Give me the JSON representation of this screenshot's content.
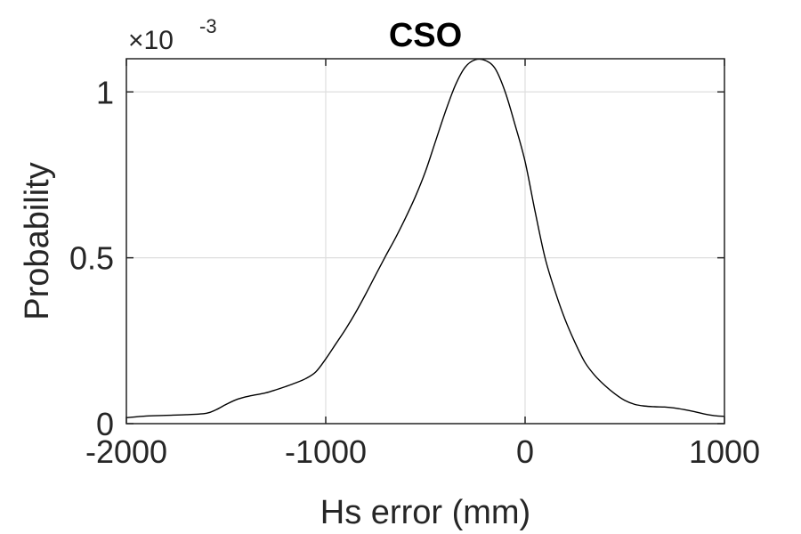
{
  "chart_data": {
    "type": "line",
    "title": "CSO",
    "xlabel": "Hs error (mm)",
    "ylabel": "Probability",
    "xlim": [
      -2000,
      1000
    ],
    "ylim": [
      0,
      0.0011
    ],
    "x_ticks": [
      -2000,
      -1000,
      0,
      1000
    ],
    "x_tick_labels": [
      "-2000",
      "-1000",
      "0",
      "1000"
    ],
    "y_ticks": [
      0,
      0.0005,
      0.001
    ],
    "y_tick_labels": [
      "0",
      "0.5",
      "1"
    ],
    "y_exponent_prefix": "×10",
    "y_exponent_power": "-3",
    "grid": true,
    "series": [
      {
        "color": "#000000",
        "x": [
          -2000,
          -1900,
          -1800,
          -1700,
          -1600,
          -1550,
          -1500,
          -1450,
          -1400,
          -1350,
          -1300,
          -1250,
          -1200,
          -1150,
          -1100,
          -1050,
          -1000,
          -950,
          -900,
          -850,
          -800,
          -750,
          -700,
          -650,
          -600,
          -550,
          -500,
          -450,
          -400,
          -350,
          -300,
          -250,
          -200,
          -150,
          -100,
          -50,
          0,
          50,
          100,
          150,
          200,
          250,
          300,
          350,
          400,
          450,
          500,
          550,
          600,
          650,
          700,
          750,
          800,
          850,
          900,
          950,
          1000
        ],
        "y": [
          1.8e-05,
          2.3e-05,
          2.5e-05,
          2.7e-05,
          3.1e-05,
          4.2e-05,
          5.8e-05,
          7.2e-05,
          8.1e-05,
          8.7e-05,
          9.3e-05,
          0.000102,
          0.000112,
          0.000123,
          0.000136,
          0.000156,
          0.000195,
          0.00024,
          0.000285,
          0.000335,
          0.00039,
          0.000448,
          0.000505,
          0.00056,
          0.00062,
          0.000685,
          0.00076,
          0.00085,
          0.00094,
          0.00102,
          0.001075,
          0.001097,
          0.001095,
          0.00107,
          0.001,
          0.0009,
          0.00079,
          0.00064,
          0.0005,
          0.0004,
          0.000315,
          0.000245,
          0.000185,
          0.000145,
          0.000115,
          9e-05,
          7e-05,
          5.8e-05,
          5.3e-05,
          5.1e-05,
          5e-05,
          4.7e-05,
          4.2e-05,
          3.6e-05,
          2.9e-05,
          2.4e-05,
          2.2e-05
        ]
      }
    ]
  }
}
